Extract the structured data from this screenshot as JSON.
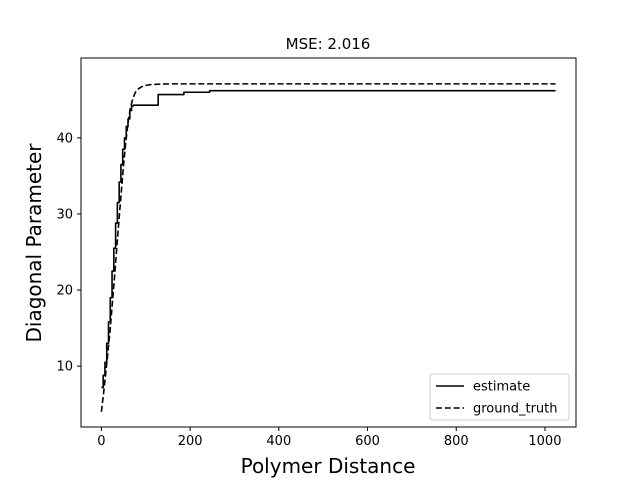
{
  "chart_data": {
    "type": "line",
    "title": "MSE: 2.016",
    "xlabel": "Polymer Distance",
    "ylabel": "Diagonal Parameter",
    "xlim": [
      -46,
      1070
    ],
    "ylim": [
      2.0,
      50.5
    ],
    "xticks": [
      0,
      200,
      400,
      600,
      800,
      1000
    ],
    "yticks": [
      10,
      20,
      30,
      40
    ],
    "grid": false,
    "legend_position": "lower-right",
    "series": [
      {
        "name": "estimate",
        "style": "solid",
        "color": "#000000",
        "step": true,
        "x": [
          0,
          4,
          8,
          12,
          16,
          20,
          24,
          28,
          32,
          36,
          40,
          44,
          48,
          52,
          56,
          60,
          64,
          68,
          72,
          124,
          128,
          182,
          186,
          240,
          244,
          1024
        ],
        "y": [
          7.2,
          8.8,
          10.5,
          13.0,
          15.8,
          19.0,
          22.5,
          25.5,
          28.8,
          31.5,
          34.2,
          36.5,
          38.5,
          40.0,
          41.5,
          42.5,
          43.6,
          44.2,
          44.3,
          44.3,
          45.7,
          45.7,
          46.0,
          46.0,
          46.2,
          46.2
        ]
      },
      {
        "name": "ground_truth",
        "style": "dashed",
        "color": "#000000",
        "step": false,
        "x": [
          0,
          5,
          10,
          15,
          20,
          25,
          30,
          35,
          40,
          45,
          50,
          55,
          60,
          65,
          70,
          75,
          80,
          90,
          100,
          110,
          125,
          150,
          200,
          300,
          500,
          1024
        ],
        "y": [
          4.0,
          6.5,
          9.2,
          12.0,
          15.0,
          18.5,
          22.0,
          25.8,
          29.5,
          33.0,
          36.5,
          39.5,
          42.0,
          43.8,
          45.0,
          45.8,
          46.3,
          46.7,
          46.9,
          47.0,
          47.05,
          47.1,
          47.1,
          47.1,
          47.1,
          47.1
        ]
      }
    ]
  }
}
